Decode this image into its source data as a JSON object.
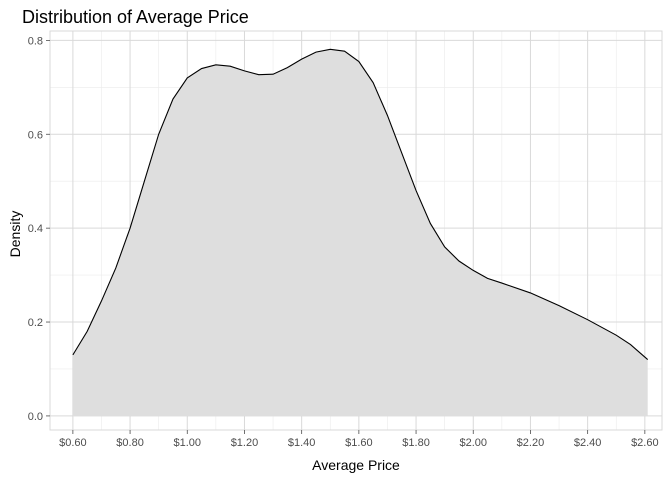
{
  "chart_data": {
    "type": "area",
    "title": "Distribution of Average Price",
    "xlabel": "Average Price",
    "ylabel": "Density",
    "xlim": [
      0.52,
      2.66
    ],
    "ylim": [
      -0.03,
      0.82
    ],
    "x_ticks": [
      0.6,
      0.8,
      1.0,
      1.2,
      1.4,
      1.6,
      1.8,
      2.0,
      2.2,
      2.4,
      2.6
    ],
    "x_tick_labels": [
      "$0.60",
      "$0.80",
      "$1.00",
      "$1.20",
      "$1.40",
      "$1.60",
      "$1.80",
      "$2.00",
      "$2.20",
      "$2.40",
      "$2.60"
    ],
    "y_ticks": [
      0.0,
      0.2,
      0.4,
      0.6,
      0.8
    ],
    "y_tick_labels": [
      "0.0",
      "0.2",
      "0.4",
      "0.6",
      "0.8"
    ],
    "grid": true,
    "fill_color": "#dedede",
    "line_color": "#000000",
    "series": [
      {
        "x": [
          0.6,
          0.65,
          0.7,
          0.75,
          0.8,
          0.85,
          0.9,
          0.95,
          1.0,
          1.05,
          1.1,
          1.15,
          1.2,
          1.25,
          1.3,
          1.35,
          1.4,
          1.45,
          1.5,
          1.55,
          1.6,
          1.65,
          1.7,
          1.75,
          1.8,
          1.85,
          1.9,
          1.95,
          2.0,
          2.05,
          2.1,
          2.2,
          2.3,
          2.4,
          2.5,
          2.55,
          2.61
        ],
        "y": [
          0.13,
          0.18,
          0.245,
          0.315,
          0.4,
          0.5,
          0.6,
          0.675,
          0.72,
          0.74,
          0.748,
          0.745,
          0.735,
          0.727,
          0.728,
          0.742,
          0.76,
          0.775,
          0.781,
          0.777,
          0.755,
          0.71,
          0.64,
          0.56,
          0.48,
          0.41,
          0.36,
          0.33,
          0.31,
          0.293,
          0.283,
          0.262,
          0.235,
          0.205,
          0.172,
          0.152,
          0.12
        ]
      }
    ]
  }
}
